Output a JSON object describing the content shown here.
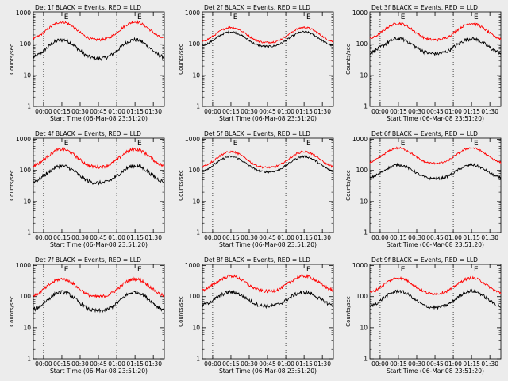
{
  "figure": {
    "background": "#ececec",
    "event_color": "#000000",
    "lld_color": "#ff0000"
  },
  "chart_data": [
    {
      "type": "line",
      "title": "Det 1f BLACK = Events, RED = LLD",
      "xlabel": "Start Time (06-Mar-08 23:51:20)",
      "ylabel": "Counts/sec",
      "xticks": [
        "00:00",
        "00:15",
        "00:30",
        "00:45",
        "01:00",
        "01:15",
        "01:30"
      ],
      "yticks": [
        "1",
        "10",
        "100",
        "1000"
      ],
      "ylim": [
        1,
        1100
      ],
      "xlim": [
        -0.14,
        1.65
      ],
      "yscale": "log",
      "markers": [
        {
          "label": "E",
          "x": 0.27
        },
        {
          "label": "E",
          "x": 1.27
        }
      ],
      "series": [
        {
          "values": {
            "base": 35,
            "peak": 140,
            "noise": 0.06
          }
        },
        {
          "values": {
            "base": 140,
            "peak": 520,
            "noise": 0.04
          }
        }
      ]
    },
    {
      "type": "line",
      "title": "Det 2f BLACK = Events, RED = LLD",
      "xlabel": "Start Time (06-Mar-08 23:51:20)",
      "ylabel": "Counts/sec",
      "xticks": [
        "00:00",
        "00:15",
        "00:30",
        "00:45",
        "01:00",
        "01:15",
        "01:30"
      ],
      "yticks": [
        "1",
        "10",
        "100",
        "1000"
      ],
      "ylim": [
        1,
        1100
      ],
      "xlim": [
        -0.14,
        1.65
      ],
      "yscale": "log",
      "markers": [
        {
          "label": "E",
          "x": 0.27
        },
        {
          "label": "E",
          "x": 1.27
        }
      ],
      "series": [
        {
          "values": {
            "base": 85,
            "peak": 250,
            "noise": 0.03
          }
        },
        {
          "values": {
            "base": 115,
            "peak": 350,
            "noise": 0.03
          }
        }
      ]
    },
    {
      "type": "line",
      "title": "Det 3f BLACK = Events, RED = LLD",
      "xlabel": "Start Time (06-Mar-08 23:51:20)",
      "ylabel": "Counts/sec",
      "xticks": [
        "00:00",
        "00:15",
        "00:30",
        "00:45",
        "01:00",
        "01:15",
        "01:30"
      ],
      "yticks": [
        "1",
        "10",
        "100",
        "1000"
      ],
      "ylim": [
        1,
        1100
      ],
      "xlim": [
        -0.14,
        1.65
      ],
      "yscale": "log",
      "markers": [
        {
          "label": "E",
          "x": 0.27
        },
        {
          "label": "E",
          "x": 1.27
        }
      ],
      "series": [
        {
          "values": {
            "base": 50,
            "peak": 150,
            "noise": 0.06
          }
        },
        {
          "values": {
            "base": 140,
            "peak": 470,
            "noise": 0.04
          }
        }
      ]
    },
    {
      "type": "line",
      "title": "Det 4f BLACK = Events, RED = LLD",
      "xlabel": "Start Time (06-Mar-08 23:51:20)",
      "ylabel": "Counts/sec",
      "xticks": [
        "00:00",
        "00:15",
        "00:30",
        "00:45",
        "01:00",
        "01:15",
        "01:30"
      ],
      "yticks": [
        "1",
        "10",
        "100",
        "1000"
      ],
      "ylim": [
        1,
        1100
      ],
      "xlim": [
        -0.14,
        1.65
      ],
      "yscale": "log",
      "markers": [
        {
          "label": "E",
          "x": 0.27
        },
        {
          "label": "E",
          "x": 1.27
        }
      ],
      "series": [
        {
          "values": {
            "base": 40,
            "peak": 140,
            "noise": 0.06
          }
        },
        {
          "values": {
            "base": 130,
            "peak": 480,
            "noise": 0.05
          }
        }
      ]
    },
    {
      "type": "line",
      "title": "Det 5f BLACK = Events, RED = LLD",
      "xlabel": "Start Time (06-Mar-08 23:51:20)",
      "ylabel": "Counts/sec",
      "xticks": [
        "00:00",
        "00:15",
        "00:30",
        "00:45",
        "01:00",
        "01:15",
        "01:30"
      ],
      "yticks": [
        "1",
        "10",
        "100",
        "1000"
      ],
      "ylim": [
        1,
        1100
      ],
      "xlim": [
        -0.14,
        1.65
      ],
      "yscale": "log",
      "markers": [
        {
          "label": "E",
          "x": 0.27
        },
        {
          "label": "E",
          "x": 1.27
        }
      ],
      "series": [
        {
          "values": {
            "base": 90,
            "peak": 280,
            "noise": 0.03
          }
        },
        {
          "values": {
            "base": 125,
            "peak": 400,
            "noise": 0.03
          }
        }
      ]
    },
    {
      "type": "line",
      "title": "Det 6f BLACK = Events, RED = LLD",
      "xlabel": "Start Time (06-Mar-08 23:51:20)",
      "ylabel": "Counts/sec",
      "xticks": [
        "00:00",
        "00:15",
        "00:30",
        "00:45",
        "01:00",
        "01:15",
        "01:30"
      ],
      "yticks": [
        "1",
        "10",
        "100",
        "1000"
      ],
      "ylim": [
        1,
        1100
      ],
      "xlim": [
        -0.14,
        1.65
      ],
      "yscale": "log",
      "markers": [
        {
          "label": "E",
          "x": 0.27
        },
        {
          "label": "E",
          "x": 1.27
        }
      ],
      "series": [
        {
          "values": {
            "base": 55,
            "peak": 150,
            "noise": 0.04
          }
        },
        {
          "values": {
            "base": 170,
            "peak": 530,
            "noise": 0.03
          }
        }
      ]
    },
    {
      "type": "line",
      "title": "Det 7f BLACK = Events, RED = LLD",
      "xlabel": "Start Time (06-Mar-08 23:51:20)",
      "ylabel": "Counts/sec",
      "xticks": [
        "00:00",
        "00:15",
        "00:30",
        "00:45",
        "01:00",
        "01:15",
        "01:30"
      ],
      "yticks": [
        "1",
        "10",
        "100",
        "1000"
      ],
      "ylim": [
        1,
        1100
      ],
      "xlim": [
        -0.14,
        1.65
      ],
      "yscale": "log",
      "markers": [
        {
          "label": "E",
          "x": 0.27
        },
        {
          "label": "E",
          "x": 1.27
        }
      ],
      "series": [
        {
          "values": {
            "base": 35,
            "peak": 140,
            "noise": 0.06
          }
        },
        {
          "values": {
            "base": 100,
            "peak": 370,
            "noise": 0.05
          }
        }
      ]
    },
    {
      "type": "line",
      "title": "Det 8f BLACK = Events, RED = LLD",
      "xlabel": "Start Time (06-Mar-08 23:51:20)",
      "ylabel": "Counts/sec",
      "xticks": [
        "00:00",
        "00:15",
        "00:30",
        "00:45",
        "01:00",
        "01:15",
        "01:30"
      ],
      "yticks": [
        "1",
        "10",
        "100",
        "1000"
      ],
      "ylim": [
        1,
        1100
      ],
      "xlim": [
        -0.14,
        1.65
      ],
      "yscale": "log",
      "markers": [
        {
          "label": "E",
          "x": 1.27
        }
      ],
      "series": [
        {
          "values": {
            "base": 50,
            "peak": 140,
            "noise": 0.06
          }
        },
        {
          "values": {
            "base": 150,
            "peak": 460,
            "noise": 0.05
          }
        }
      ]
    },
    {
      "type": "line",
      "title": "Det 9f BLACK = Events, RED = LLD",
      "xlabel": "Start Time (06-Mar-08 23:51:20)",
      "ylabel": "Counts/sec",
      "xticks": [
        "00:00",
        "00:15",
        "00:30",
        "00:45",
        "01:00",
        "01:15",
        "01:30"
      ],
      "yticks": [
        "1",
        "10",
        "100",
        "1000"
      ],
      "ylim": [
        1,
        1100
      ],
      "xlim": [
        -0.14,
        1.65
      ],
      "yscale": "log",
      "markers": [
        {
          "label": "E",
          "x": 0.27
        },
        {
          "label": "E",
          "x": 1.27
        }
      ],
      "series": [
        {
          "values": {
            "base": 45,
            "peak": 150,
            "noise": 0.05
          }
        },
        {
          "values": {
            "base": 125,
            "peak": 400,
            "noise": 0.04
          }
        }
      ]
    }
  ]
}
